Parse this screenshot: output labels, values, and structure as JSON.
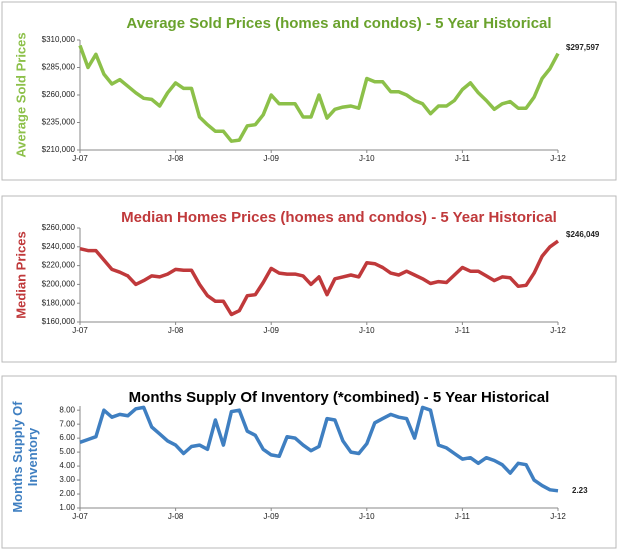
{
  "chart_data": [
    {
      "type": "line",
      "title": "Average Sold Prices (homes and condos) - 5 Year Historical",
      "y_label": "Average Sold Prices",
      "categories": [
        "J-07",
        null,
        null,
        null,
        null,
        null,
        null,
        null,
        null,
        null,
        null,
        null,
        "J-08",
        null,
        null,
        null,
        null,
        null,
        null,
        null,
        null,
        null,
        null,
        null,
        "J-09",
        null,
        null,
        null,
        null,
        null,
        null,
        null,
        null,
        null,
        null,
        null,
        "J-10",
        null,
        null,
        null,
        null,
        null,
        null,
        null,
        null,
        null,
        null,
        null,
        "J-11",
        null,
        null,
        null,
        null,
        null,
        null,
        null,
        null,
        null,
        null,
        null,
        "J-12"
      ],
      "series": [
        {
          "name": "Average Sold Prices",
          "color": "#8cc049",
          "values": [
            305000,
            285000,
            297000,
            279000,
            270000,
            274000,
            268000,
            262000,
            257000,
            256000,
            250000,
            262000,
            271000,
            266000,
            266000,
            240000,
            233000,
            227000,
            227000,
            218000,
            219000,
            232000,
            233000,
            242000,
            260000,
            252000,
            252000,
            252000,
            240000,
            240000,
            260000,
            239000,
            247000,
            249000,
            250000,
            248000,
            275000,
            272000,
            272000,
            263000,
            263000,
            260000,
            255000,
            252000,
            243000,
            250000,
            250000,
            255000,
            265000,
            271000,
            262000,
            255000,
            247000,
            252000,
            254000,
            248000,
            248000,
            258000,
            275000,
            284000,
            297597
          ],
          "value_labels": [
            null,
            null,
            null,
            null,
            null,
            null,
            null,
            null,
            null,
            null,
            null,
            null,
            null,
            null,
            null,
            null,
            null,
            null,
            null,
            null,
            null,
            null,
            null,
            null,
            null,
            null,
            null,
            null,
            null,
            null,
            null,
            null,
            null,
            null,
            null,
            null,
            null,
            null,
            null,
            null,
            null,
            null,
            null,
            null,
            null,
            null,
            null,
            null,
            null,
            null,
            null,
            null,
            null,
            null,
            null,
            null,
            null,
            null,
            null,
            null,
            "$297,597"
          ]
        }
      ],
      "ylim": [
        210000,
        310000
      ],
      "yticks": [
        {
          "value": 210000,
          "label": "$210,000"
        },
        {
          "value": 235000,
          "label": "$235,000"
        },
        {
          "value": 260000,
          "label": "$260,000"
        },
        {
          "value": 285000,
          "label": "$285,000"
        },
        {
          "value": 310000,
          "label": "$310,000"
        }
      ],
      "title_color": "#6aa22d"
    },
    {
      "type": "line",
      "title": "Median Homes Prices (homes and condos) - 5 Year Historical",
      "y_label": "Median Prices",
      "categories": [
        "J-07",
        null,
        null,
        null,
        null,
        null,
        null,
        null,
        null,
        null,
        null,
        null,
        "J-08",
        null,
        null,
        null,
        null,
        null,
        null,
        null,
        null,
        null,
        null,
        null,
        "J-09",
        null,
        null,
        null,
        null,
        null,
        null,
        null,
        null,
        null,
        null,
        null,
        "J-10",
        null,
        null,
        null,
        null,
        null,
        null,
        null,
        null,
        null,
        null,
        null,
        "J-11",
        null,
        null,
        null,
        null,
        null,
        null,
        null,
        null,
        null,
        null,
        null,
        "J-12"
      ],
      "series": [
        {
          "name": "Median Prices",
          "color": "#c0393b",
          "values": [
            238000,
            236000,
            236000,
            226000,
            216000,
            213000,
            209000,
            200000,
            204000,
            209000,
            208000,
            211000,
            216000,
            215000,
            215000,
            200000,
            188000,
            182000,
            182000,
            168000,
            172000,
            188000,
            189000,
            202000,
            217000,
            212000,
            211000,
            211000,
            209000,
            200000,
            208000,
            189000,
            206000,
            208000,
            210000,
            208000,
            223000,
            222000,
            218000,
            212000,
            210000,
            214000,
            210000,
            206000,
            201000,
            203000,
            202000,
            210000,
            218000,
            214000,
            214000,
            209000,
            204000,
            208000,
            207000,
            198000,
            199000,
            212000,
            230000,
            240000,
            246049
          ],
          "value_labels": [
            null,
            null,
            null,
            null,
            null,
            null,
            null,
            null,
            null,
            null,
            null,
            null,
            null,
            null,
            null,
            null,
            null,
            null,
            null,
            null,
            null,
            null,
            null,
            null,
            null,
            null,
            null,
            null,
            null,
            null,
            null,
            null,
            null,
            null,
            null,
            null,
            null,
            null,
            null,
            null,
            null,
            null,
            null,
            null,
            null,
            null,
            null,
            null,
            null,
            null,
            null,
            null,
            null,
            null,
            null,
            null,
            null,
            null,
            null,
            null,
            "$246,049"
          ]
        }
      ],
      "ylim": [
        160000,
        260000
      ],
      "yticks": [
        {
          "value": 160000,
          "label": "$160,000"
        },
        {
          "value": 180000,
          "label": "$180,000"
        },
        {
          "value": 200000,
          "label": "$200,000"
        },
        {
          "value": 220000,
          "label": "$220,000"
        },
        {
          "value": 240000,
          "label": "$240,000"
        },
        {
          "value": 260000,
          "label": "$260,000"
        }
      ],
      "title_color": "#c0393b"
    },
    {
      "type": "line",
      "title": "Months Supply Of Inventory (*combined) - 5 Year Historical",
      "y_label": "Months Supply Of Inventory",
      "categories": [
        "J-07",
        null,
        null,
        null,
        null,
        null,
        null,
        null,
        null,
        null,
        null,
        null,
        "J-08",
        null,
        null,
        null,
        null,
        null,
        null,
        null,
        null,
        null,
        null,
        null,
        "J-09",
        null,
        null,
        null,
        null,
        null,
        null,
        null,
        null,
        null,
        null,
        null,
        "J-10",
        null,
        null,
        null,
        null,
        null,
        null,
        null,
        null,
        null,
        null,
        null,
        "J-11",
        null,
        null,
        null,
        null,
        null,
        null,
        null,
        null,
        null,
        null,
        null,
        "J-12"
      ],
      "series": [
        {
          "name": "Months Supply Of Inventory",
          "color": "#3f7fc1",
          "values": [
            5.7,
            5.9,
            6.1,
            8.0,
            7.5,
            7.7,
            7.6,
            8.1,
            8.2,
            6.8,
            6.3,
            5.8,
            5.5,
            4.9,
            5.4,
            5.5,
            5.2,
            7.3,
            5.5,
            7.9,
            8.0,
            6.5,
            6.2,
            5.2,
            4.8,
            4.7,
            6.1,
            6.0,
            5.5,
            5.1,
            5.4,
            7.4,
            7.3,
            5.8,
            5.0,
            4.9,
            5.6,
            7.1,
            7.4,
            7.7,
            7.5,
            7.4,
            6.0,
            8.2,
            8.0,
            5.5,
            5.3,
            4.9,
            4.5,
            4.6,
            4.2,
            4.6,
            4.4,
            4.1,
            3.5,
            4.2,
            4.1,
            3.0,
            2.6,
            2.3,
            2.23
          ]
        }
      ],
      "ylim": [
        1,
        8.3
      ],
      "yticks": [
        {
          "value": 1,
          "label": "1.00"
        },
        {
          "value": 2,
          "label": "2.00"
        },
        {
          "value": 3,
          "label": "3.00"
        },
        {
          "value": 4,
          "label": "4.00"
        },
        {
          "value": 5,
          "label": "5.00"
        },
        {
          "value": 6,
          "label": "6.00"
        },
        {
          "value": 7,
          "label": "7.00"
        },
        {
          "value": 8,
          "label": "8.00"
        }
      ],
      "title_color": "#000000"
    }
  ]
}
